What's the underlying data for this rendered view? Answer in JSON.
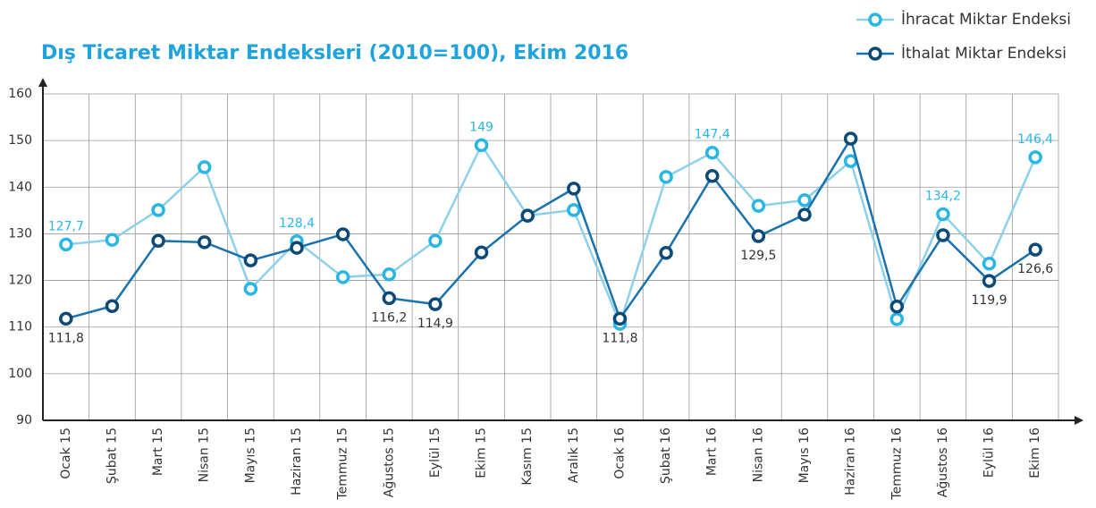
{
  "chart_data": {
    "type": "line",
    "title": "Dış Ticaret Miktar Endeksleri (2010=100), Ekim 2016",
    "categories": [
      "Ocak 15",
      "Şubat 15",
      "Mart 15",
      "Nisan 15",
      "Mayıs 15",
      "Haziran 15",
      "Temmuz 15",
      "Ağustos 15",
      "Eylül 15",
      "Ekim 15",
      "Kasım 15",
      "Aralık 15",
      "Ocak 16",
      "Şubat 16",
      "Mart 16",
      "Nisan 16",
      "Mayıs 16",
      "Haziran 16",
      "Temmuz 16",
      "Ağustos 16",
      "Eylül 16",
      "Ekim 16"
    ],
    "series": [
      {
        "name": "İhracat Miktar Endeksi",
        "color": "#29b6e6",
        "line_color": "#8dd0ea",
        "values": [
          127.7,
          128.7,
          135.1,
          144.3,
          118.2,
          128.4,
          120.7,
          121.3,
          128.5,
          149,
          133.9,
          135.1,
          110.7,
          142.2,
          147.4,
          136,
          137.2,
          145.6,
          111.7,
          134.2,
          123.6,
          146.4
        ],
        "value_labels": [
          "127,7",
          null,
          null,
          null,
          null,
          "128,4",
          null,
          null,
          null,
          "149",
          null,
          null,
          null,
          null,
          "147,4",
          null,
          null,
          null,
          null,
          "134,2",
          null,
          "146,4"
        ]
      },
      {
        "name": "İthalat Miktar Endeksi",
        "color": "#0b4a78",
        "line_color": "#1a72ad",
        "values": [
          111.8,
          114.5,
          128.5,
          128.2,
          124.3,
          127,
          129.9,
          116.2,
          114.9,
          126,
          133.9,
          139.7,
          111.8,
          125.9,
          142.4,
          129.5,
          134.1,
          150.4,
          114.4,
          129.7,
          119.9,
          126.6
        ],
        "value_labels": [
          "111,8",
          null,
          null,
          null,
          null,
          null,
          null,
          "116,2",
          "114,9",
          null,
          null,
          null,
          "111,8",
          null,
          null,
          "129,5",
          null,
          null,
          null,
          null,
          "119,9",
          "126,6"
        ]
      }
    ],
    "ylim": [
      90,
      160
    ],
    "yticks": [
      90,
      100,
      110,
      120,
      130,
      140,
      150,
      160
    ],
    "grid": true
  }
}
